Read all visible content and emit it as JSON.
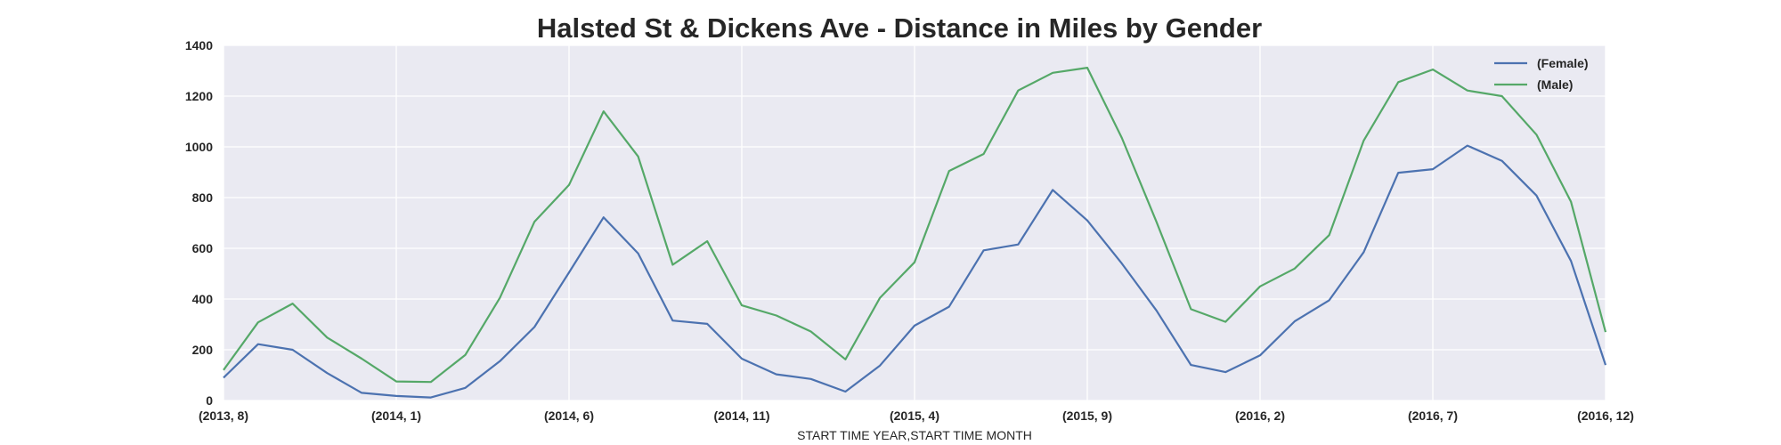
{
  "chart_data": {
    "type": "line",
    "title": "Halsted St & Dickens Ave - Distance in Miles by Gender",
    "xlabel": "START TIME YEAR,START TIME MONTH",
    "ylabel": "",
    "ylim": [
      0,
      1400
    ],
    "yticks": [
      0,
      200,
      400,
      600,
      800,
      1000,
      1200,
      1400
    ],
    "grid": true,
    "legend_position": "top-right",
    "x_tick_labels": [
      "(2013, 8)",
      "(2014, 1)",
      "(2014, 6)",
      "(2014, 11)",
      "(2015, 4)",
      "(2015, 9)",
      "(2016, 2)",
      "(2016, 7)",
      "(2016, 12)"
    ],
    "x_tick_step": 5,
    "categories": [
      "(2013, 8)",
      "(2013, 9)",
      "(2013, 10)",
      "(2013, 11)",
      "(2013, 12)",
      "(2014, 1)",
      "(2014, 2)",
      "(2014, 3)",
      "(2014, 4)",
      "(2014, 5)",
      "(2014, 6)",
      "(2014, 7)",
      "(2014, 8)",
      "(2014, 9)",
      "(2014, 10)",
      "(2014, 11)",
      "(2014, 12)",
      "(2015, 1)",
      "(2015, 2)",
      "(2015, 3)",
      "(2015, 4)",
      "(2015, 5)",
      "(2015, 6)",
      "(2015, 7)",
      "(2015, 8)",
      "(2015, 9)",
      "(2015, 10)",
      "(2015, 11)",
      "(2015, 12)",
      "(2016, 1)",
      "(2016, 2)",
      "(2016, 3)",
      "(2016, 4)",
      "(2016, 5)",
      "(2016, 6)",
      "(2016, 7)",
      "(2016, 8)",
      "(2016, 9)",
      "(2016, 10)",
      "(2016, 11)",
      "(2016, 12)"
    ],
    "series": [
      {
        "name": "(Female)",
        "color": "#4c72b0",
        "values": [
          90,
          222,
          200,
          108,
          30,
          18,
          12,
          50,
          155,
          290,
          505,
          722,
          580,
          315,
          302,
          165,
          103,
          85,
          35,
          138,
          295,
          370,
          592,
          615,
          830,
          710,
          540,
          355,
          140,
          112,
          178,
          312,
          395,
          585,
          898,
          912,
          1005,
          945,
          808,
          550,
          140
        ]
      },
      {
        "name": "(Male)",
        "color": "#55a868",
        "values": [
          120,
          308,
          382,
          248,
          165,
          75,
          73,
          180,
          405,
          705,
          850,
          1140,
          962,
          535,
          628,
          375,
          335,
          272,
          162,
          405,
          545,
          905,
          972,
          1222,
          1292,
          1312,
          1035,
          705,
          360,
          310,
          450,
          520,
          652,
          1025,
          1255,
          1305,
          1222,
          1200,
          1048,
          783,
          270
        ]
      }
    ]
  }
}
